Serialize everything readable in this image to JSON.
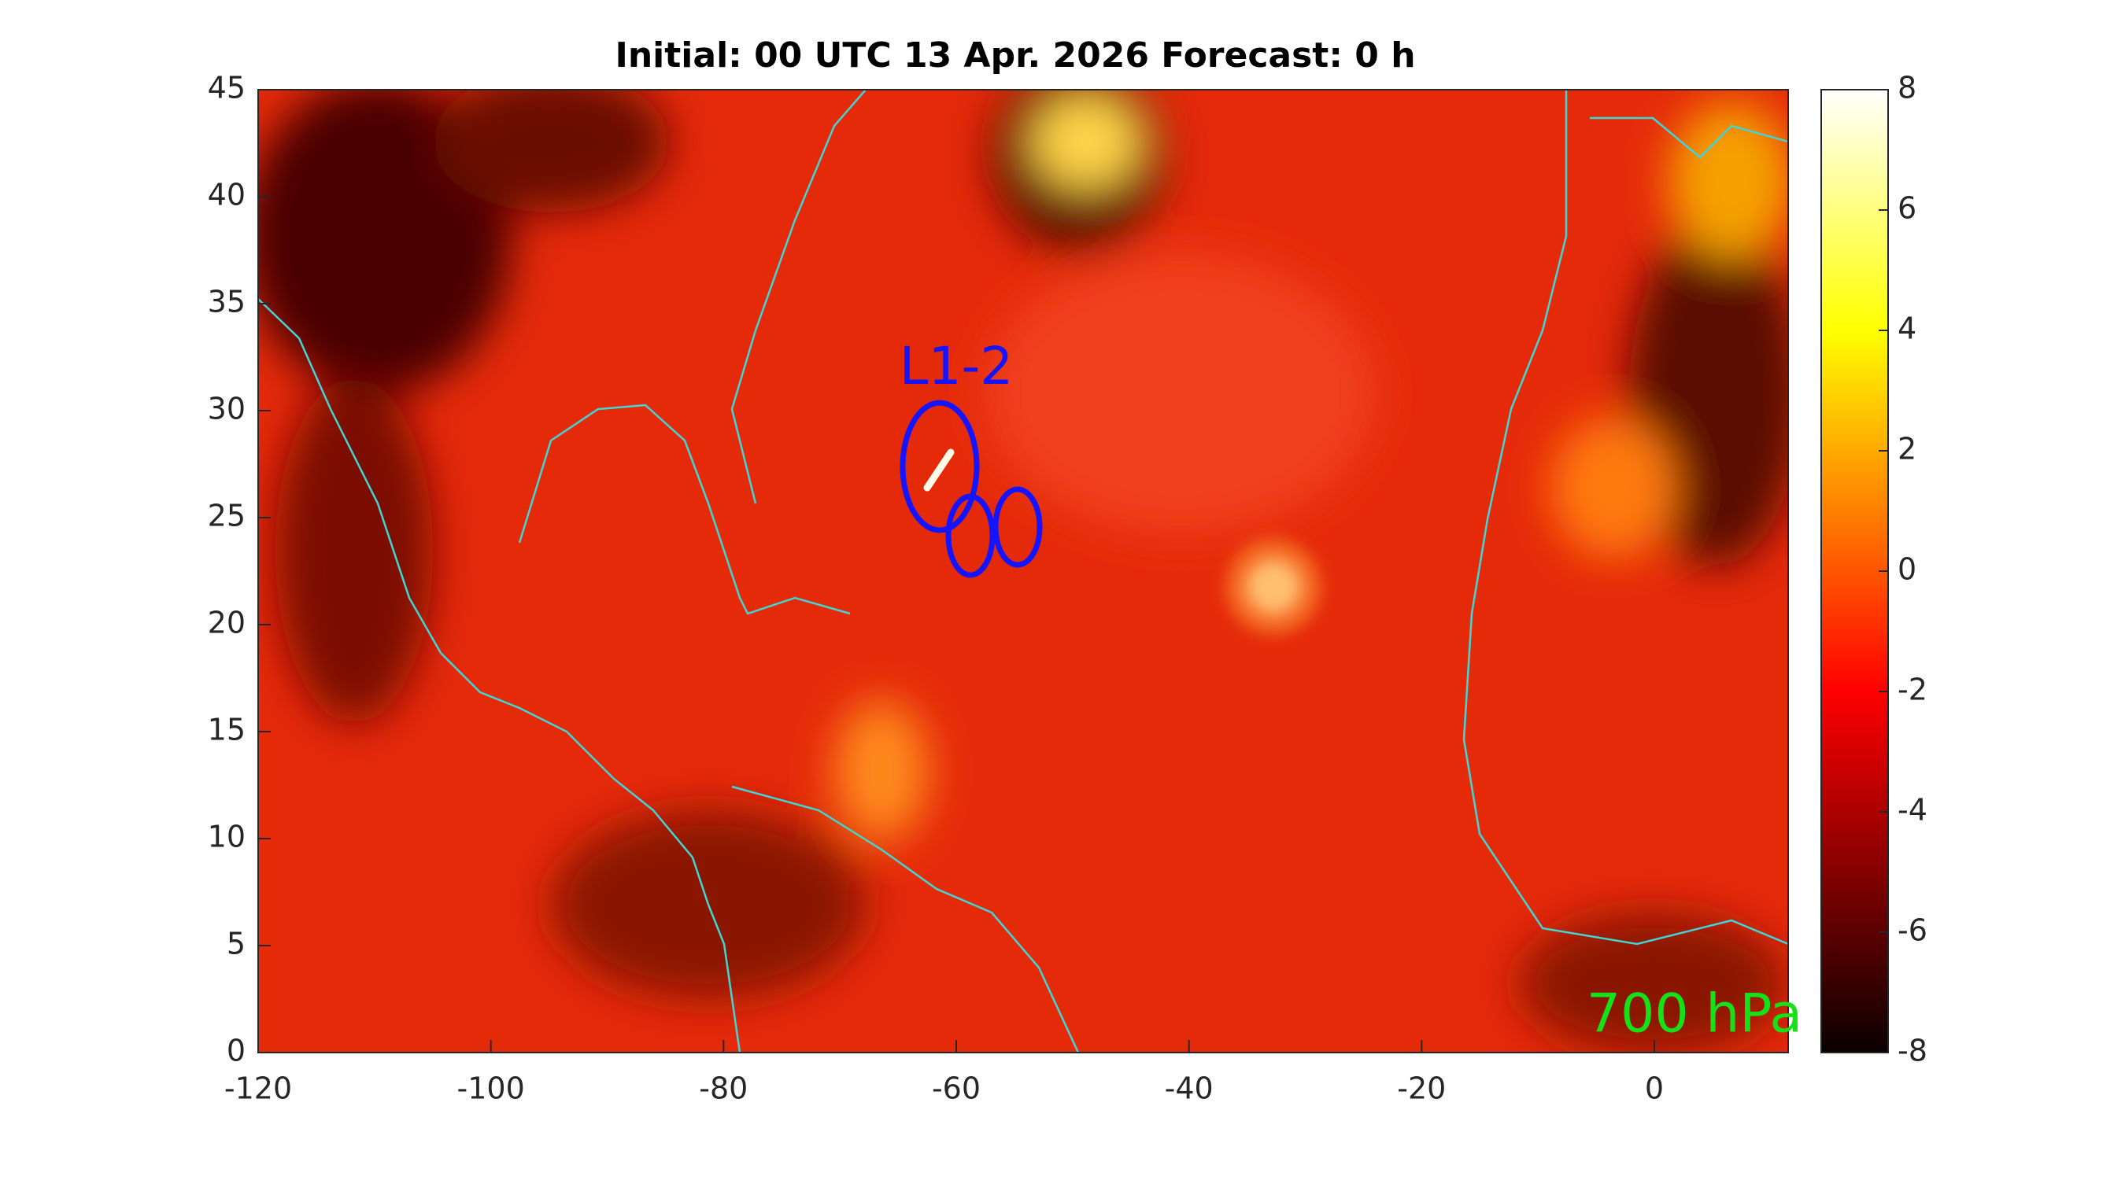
{
  "chart_data": {
    "type": "heatmap",
    "title": "Initial: 00 UTC 13 Apr. 2026 Forecast: 0 h",
    "xlim": [
      -120,
      11.5
    ],
    "xticks": [
      -120,
      -100,
      -80,
      -60,
      -40,
      -20,
      0
    ],
    "ylim": [
      0,
      45
    ],
    "yticks": [
      0,
      5,
      10,
      15,
      20,
      25,
      30,
      35,
      40,
      45
    ],
    "colorbar": {
      "colormap": "hot",
      "lim": [
        -8,
        8
      ],
      "ticks": [
        -8,
        -6,
        -4,
        -2,
        0,
        2,
        4,
        6,
        8
      ]
    },
    "annotations": [
      "L1-2",
      "700 hPa"
    ]
  }
}
